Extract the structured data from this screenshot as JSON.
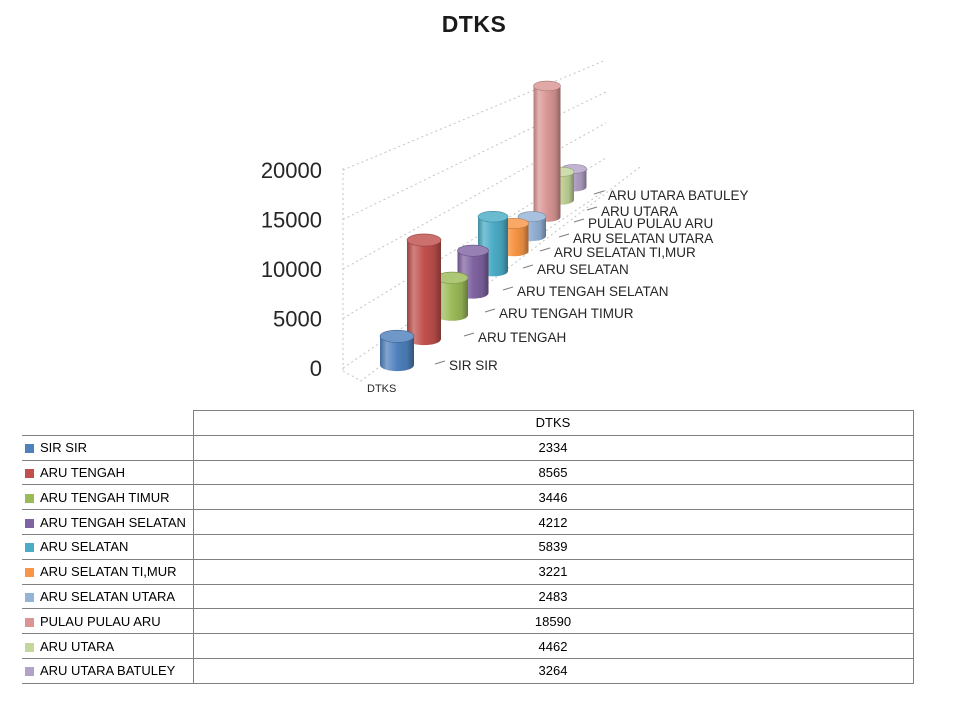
{
  "title": "DTKS",
  "chart_data": {
    "type": "bar",
    "subtype": "3d-cylinder",
    "title": "DTKS",
    "series_label": "DTKS",
    "categories": [
      "SIR SIR",
      "ARU TENGAH",
      "ARU TENGAH TIMUR",
      "ARU TENGAH SELATAN",
      "ARU SELATAN",
      "ARU SELATAN TI,MUR",
      "ARU SELATAN UTARA",
      "PULAU PULAU ARU",
      "ARU UTARA",
      "ARU UTARA BATULEY"
    ],
    "series": [
      {
        "name": "DTKS",
        "values": [
          2334,
          8565,
          3446,
          4212,
          5839,
          3221,
          2483,
          18590,
          4462,
          3264
        ]
      }
    ],
    "colors": [
      "#4F81BD",
      "#C0504D",
      "#9BBB59",
      "#8064A2",
      "#4BACC6",
      "#F79646",
      "#95B3D7",
      "#D99694",
      "#C3D69B",
      "#B3A2C7"
    ],
    "value_axis_ticks": [
      0,
      5000,
      10000,
      15000,
      20000
    ],
    "ylim": [
      0,
      20000
    ],
    "grid": "dashed",
    "legend": "data-table-below-chart"
  },
  "table": {
    "header": "DTKS",
    "rows": [
      {
        "label": "SIR SIR",
        "value": 2334,
        "color": "#4F81BD"
      },
      {
        "label": "ARU TENGAH",
        "value": 8565,
        "color": "#C0504D"
      },
      {
        "label": "ARU TENGAH TIMUR",
        "value": 3446,
        "color": "#9BBB59"
      },
      {
        "label": "ARU TENGAH SELATAN",
        "value": 4212,
        "color": "#8064A2"
      },
      {
        "label": "ARU SELATAN",
        "value": 5839,
        "color": "#4BACC6"
      },
      {
        "label": "ARU SELATAN TI,MUR",
        "value": 3221,
        "color": "#F79646"
      },
      {
        "label": "ARU SELATAN UTARA",
        "value": 2483,
        "color": "#95B3D7"
      },
      {
        "label": "PULAU PULAU ARU",
        "value": 18590,
        "color": "#D99694"
      },
      {
        "label": "ARU UTARA",
        "value": 4462,
        "color": "#C3D69B"
      },
      {
        "label": "ARU UTARA BATULEY",
        "value": 3264,
        "color": "#B3A2C7"
      }
    ]
  }
}
